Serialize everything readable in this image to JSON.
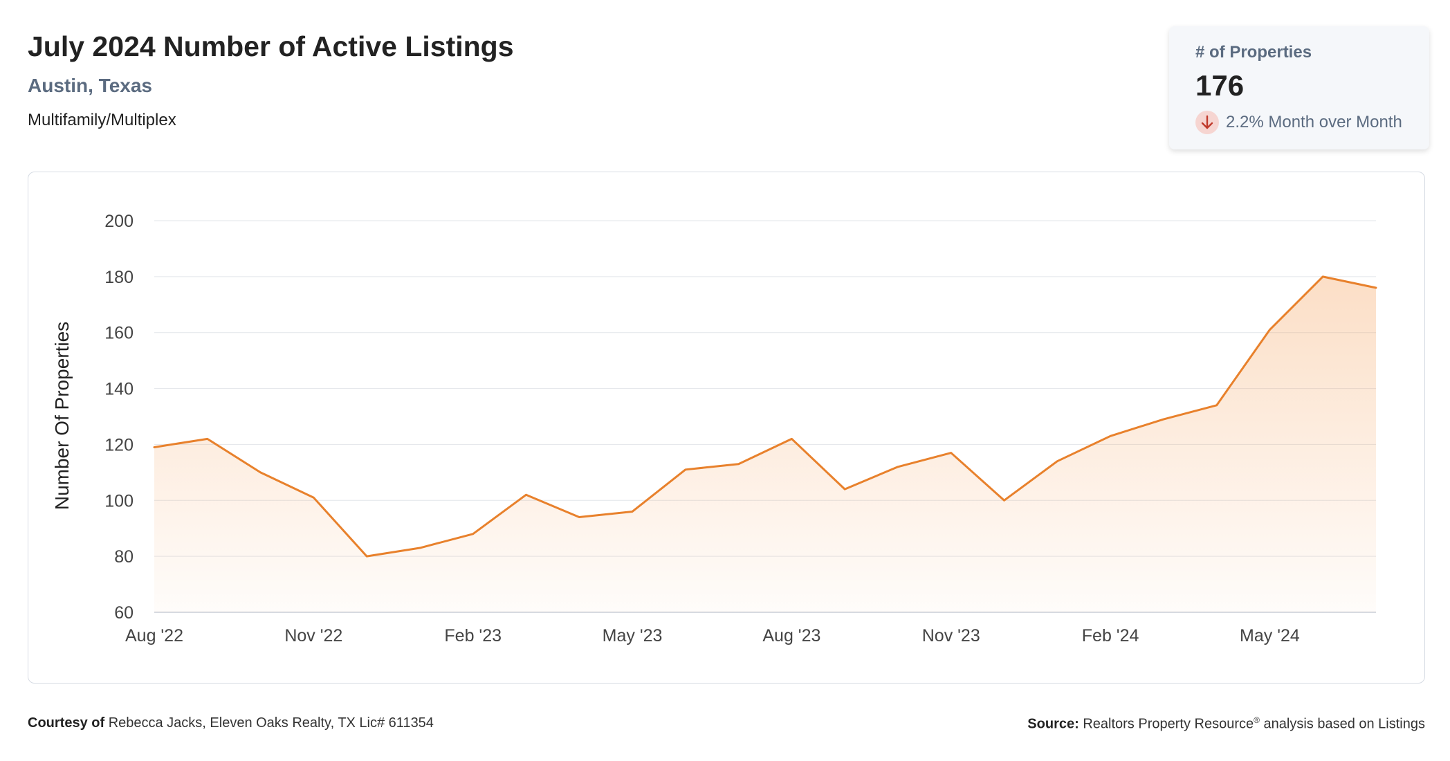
{
  "header": {
    "title": "July 2024 Number of Active Listings",
    "location": "Austin, Texas",
    "property_type": "Multifamily/Multiplex"
  },
  "kpi": {
    "label": "# of Properties",
    "value": "176",
    "change": "2.2% Month over Month",
    "direction": "down",
    "change_color": "#c0392b"
  },
  "footer": {
    "courtesy_label": "Courtesy of",
    "courtesy_text": "Rebecca Jacks, Eleven Oaks Realty, TX Lic# 611354",
    "source_label": "Source:",
    "source_text": "Realtors Property Resource",
    "source_mark": "®",
    "source_suffix": " analysis based on Listings"
  },
  "chart_data": {
    "type": "area",
    "ylabel": "Number Of Properties",
    "ylim": [
      60,
      200
    ],
    "yticks": [
      60,
      80,
      100,
      120,
      140,
      160,
      180,
      200
    ],
    "x_tick_labels": [
      "Aug '22",
      "Nov '22",
      "Feb '23",
      "May '23",
      "Aug '23",
      "Nov '23",
      "Feb '24",
      "May '24"
    ],
    "x_tick_indices": [
      0,
      3,
      6,
      9,
      12,
      15,
      18,
      21
    ],
    "grid": true,
    "line_color": "#e8812c",
    "fill_color": "#f5a25d",
    "series": [
      {
        "values": [
          119,
          122,
          110,
          101,
          80,
          83,
          88,
          102,
          94,
          96,
          111,
          113,
          122,
          104,
          112,
          117,
          100,
          114,
          123,
          129,
          134,
          161,
          180,
          176
        ]
      }
    ]
  }
}
